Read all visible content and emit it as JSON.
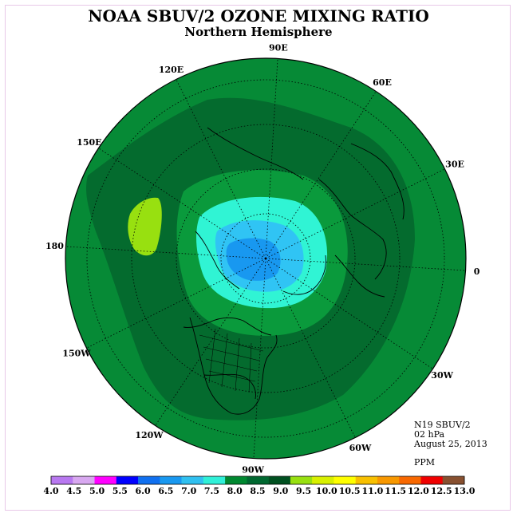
{
  "header": {
    "title": "NOAA SBUV/2 OZONE MIXING RATIO",
    "subtitle": "Northern Hemisphere"
  },
  "info": {
    "instrument": "N19 SBUV/2",
    "level": "02 hPa",
    "date": "August 25, 2013",
    "units": "PPM"
  },
  "longitude_labels": [
    "90E",
    "60E",
    "30E",
    "0",
    "30W",
    "60W",
    "90W",
    "120W",
    "150W",
    "180",
    "150E",
    "120E"
  ],
  "colorbar": {
    "ticks": [
      "4.0",
      "4.5",
      "5.0",
      "5.5",
      "6.0",
      "6.5",
      "7.0",
      "7.5",
      "8.0",
      "8.5",
      "9.0",
      "9.5",
      "10.0",
      "10.5",
      "11.0",
      "11.5",
      "12.0",
      "12.5",
      "13.0"
    ],
    "colors": [
      "#b878f0",
      "#d8a8f0",
      "#ff00ff",
      "#0000ff",
      "#1070f0",
      "#1898f0",
      "#30c0f0",
      "#30f0d8",
      "#008830",
      "#006830",
      "#005020",
      "#98e010",
      "#d8f000",
      "#ffff00",
      "#f8c000",
      "#f89800",
      "#f86800",
      "#f00000",
      "#885030"
    ]
  },
  "map_colors": {
    "background_green": "#068a36",
    "dark_green": "#046b2e",
    "light_green": "#0a9a3c",
    "cyan": "#30f4d4",
    "light_blue": "#30c4f4",
    "blue": "#1898f0",
    "yellow_green": "#98e010"
  }
}
